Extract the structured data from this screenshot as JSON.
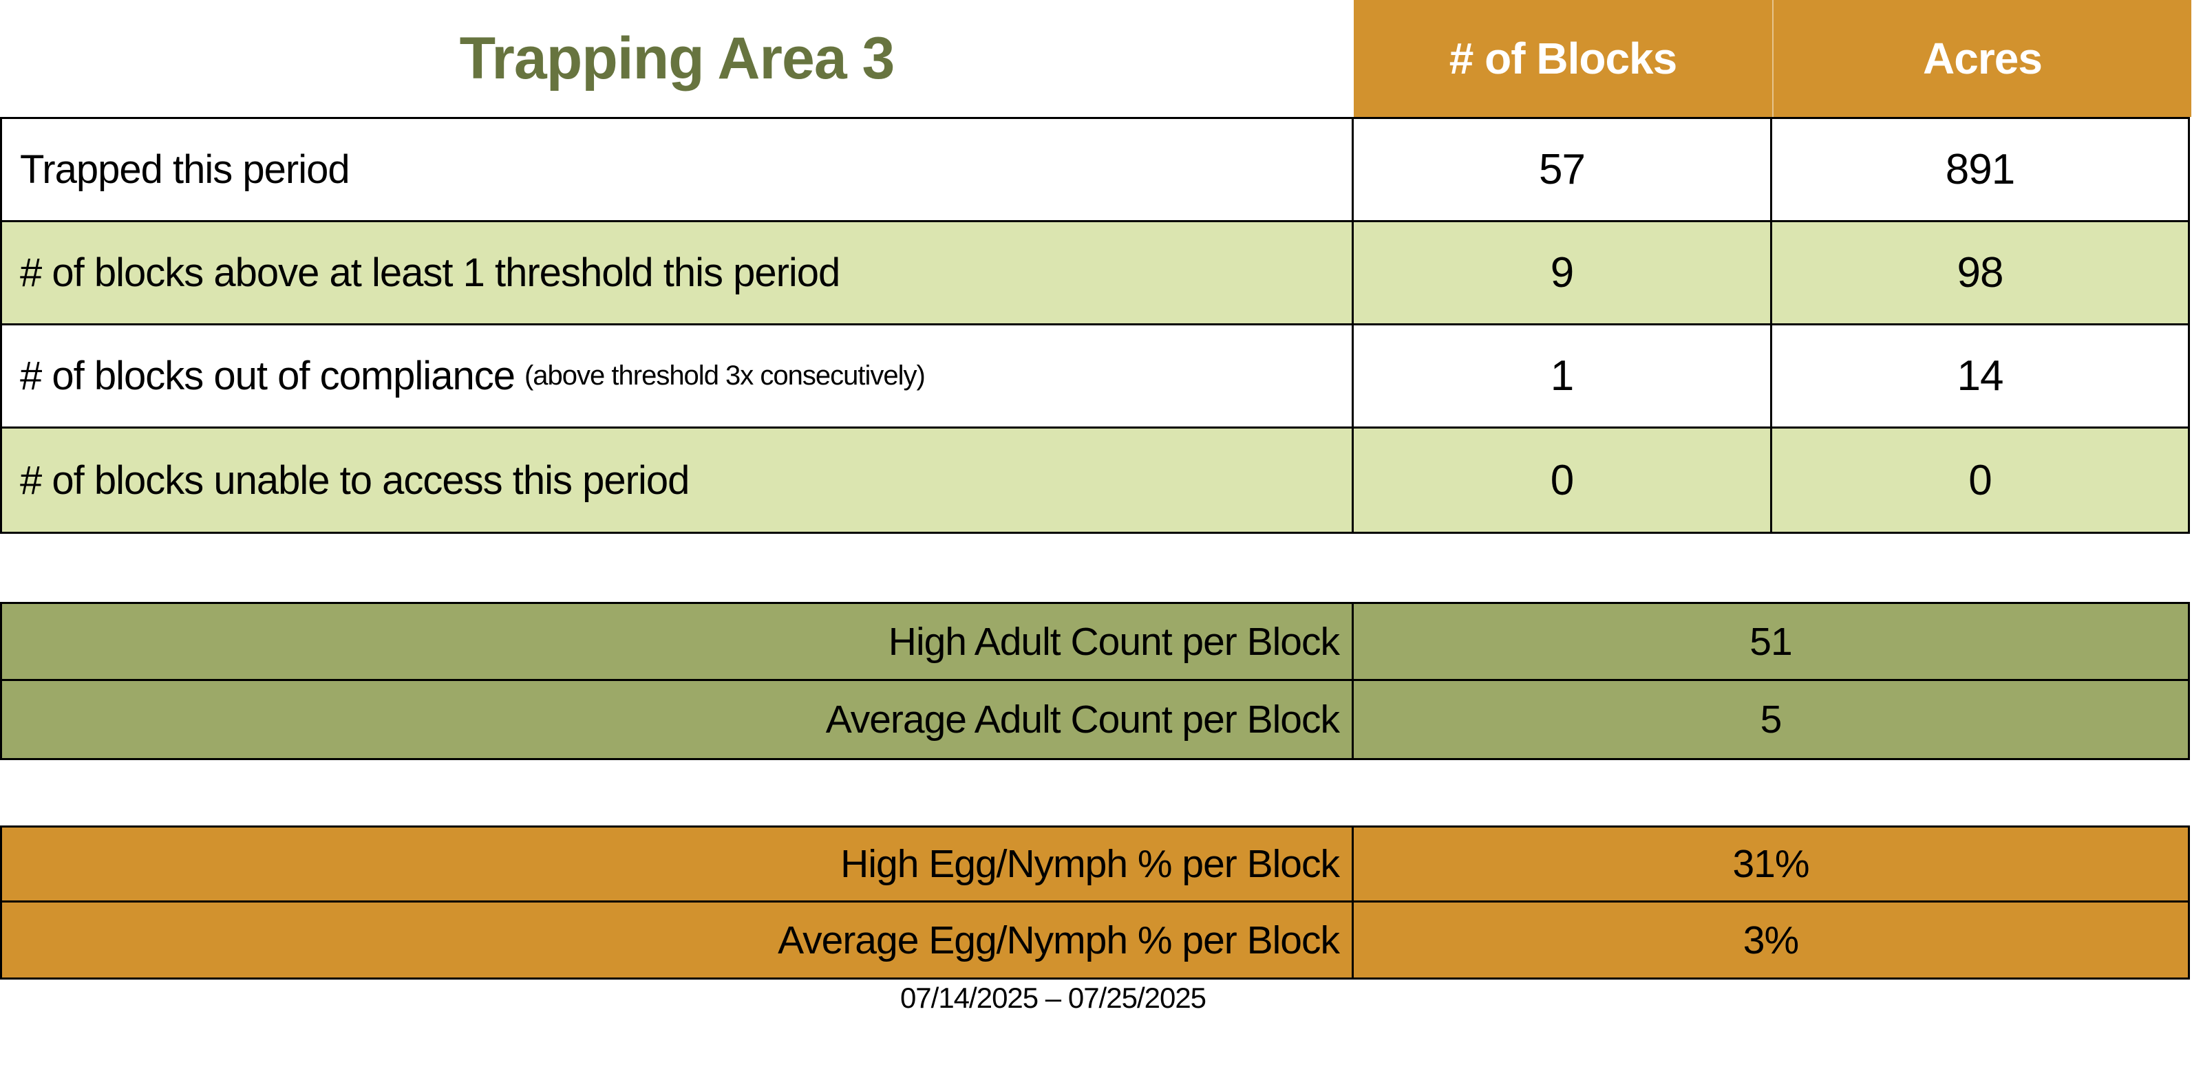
{
  "title": "Trapping Area 3",
  "colors": {
    "header_orange": "#D2922E",
    "row_light_green": "#DBE5B0",
    "adult_table_olive": "#9CA968",
    "title_green": "#67743F",
    "border_black": "#000000",
    "header_text_white": "#FFFFFF"
  },
  "summary_table": {
    "columns": {
      "blocks": "# of Blocks",
      "acres": "Acres"
    },
    "rows": [
      {
        "label": "Trapped this period",
        "note": "",
        "blocks": "57",
        "acres": "891"
      },
      {
        "label": "# of blocks above at least 1 threshold this period",
        "note": "",
        "blocks": "9",
        "acres": "98"
      },
      {
        "label": "# of blocks out of compliance",
        "note": "(above threshold 3x consecutively)",
        "blocks": "1",
        "acres": "14"
      },
      {
        "label": "# of blocks unable to access this period",
        "note": "",
        "blocks": "0",
        "acres": "0"
      }
    ]
  },
  "adult_count_table": {
    "rows": [
      {
        "label": "High Adult Count per Block",
        "value": "51"
      },
      {
        "label": "Average Adult Count per Block",
        "value": "5"
      }
    ]
  },
  "egg_nymph_table": {
    "rows": [
      {
        "label": "High Egg/Nymph % per Block",
        "value": "31%"
      },
      {
        "label": "Average Egg/Nymph % per Block",
        "value": "3%"
      }
    ]
  },
  "footer": {
    "date_range": "07/14/2025 – 07/25/2025"
  }
}
